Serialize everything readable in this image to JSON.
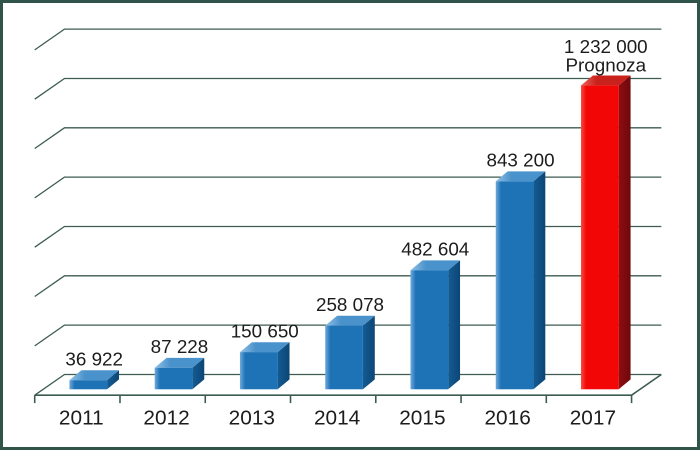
{
  "chart_style": {
    "background": "#ffffff",
    "border_color": "#30544a",
    "grid_color": "#3c5b51",
    "axis_color": "#3c5b51",
    "text_color": "#1c1c1c"
  },
  "chart_data": {
    "type": "bar",
    "style": "3d-column",
    "title": "",
    "xlabel": "",
    "ylabel": "",
    "categories": [
      "2011",
      "2012",
      "2013",
      "2014",
      "2015",
      "2016",
      "2017"
    ],
    "values": [
      36922,
      87228,
      150650,
      258078,
      482604,
      843200,
      1232000
    ],
    "value_labels": [
      "36 922",
      "87 228",
      "150 650",
      "258 078",
      "482 604",
      "843 200",
      "1 232 000"
    ],
    "bar_roles": [
      "actual",
      "actual",
      "actual",
      "actual",
      "actual",
      "actual",
      "forecast"
    ],
    "annotations": [
      {
        "category": "2017",
        "text": "Prognoza"
      }
    ],
    "series_colors": {
      "actual": {
        "front": "#1e72b6",
        "front_hi": "#6faadc",
        "top": "#4a92cb",
        "top_hi": "#8fc0e6",
        "side": "#135c95",
        "side_dark": "#0d4574"
      },
      "forecast": {
        "front": "#f20606",
        "front_hi": "#fb4b41",
        "top": "#c9211b",
        "top_hi": "#e9655c",
        "side": "#8f0e12",
        "side_dark": "#6e070b"
      }
    },
    "ylim": [
      0,
      1400000
    ],
    "major_unit": 200000,
    "grid": true,
    "legend": false,
    "y_tick_labels_shown": false
  }
}
